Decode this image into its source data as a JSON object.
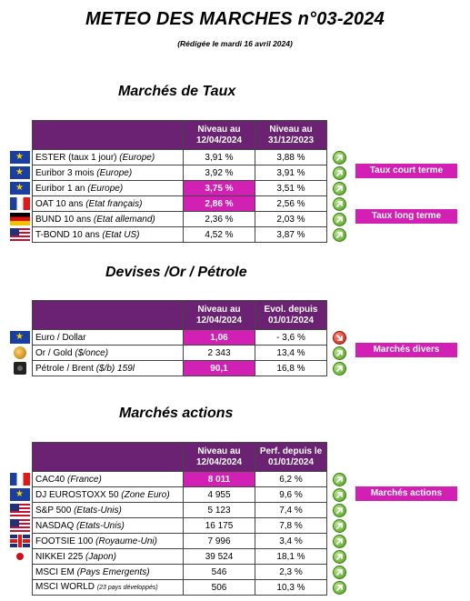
{
  "header": {
    "title": "METEO DES MARCHES n°03-2024",
    "subtitle": "(Rédigée le mardi 16 avril 2024)"
  },
  "taux": {
    "section_title": "Marchés de Taux",
    "col1": "Niveau au 12/04/2024",
    "col2": "Niveau au 31/12/2023",
    "rows": [
      {
        "flag": "eu-flag",
        "name": "ESTER (taux 1 jour) ",
        "region": "(Europe)",
        "v1": "3,91 %",
        "v2": "3,88 %",
        "trend": "up"
      },
      {
        "flag": "eu-flag",
        "name": "Euribor 3 mois ",
        "region": "(Europe)",
        "v1": "3,92 %",
        "v2": "3,91 %",
        "trend": "up"
      },
      {
        "flag": "eu-flag",
        "name": "Euribor 1 an ",
        "region": "(Europe)",
        "v1": "3,75 %",
        "v2": "3,51 %",
        "trend": "up",
        "highlight": true
      },
      {
        "flag": "france-flag",
        "name": "OAT 10 ans ",
        "region": "(Etat français)",
        "v1": "2,86 %",
        "v2": "2,56 %",
        "trend": "up",
        "highlight": true
      },
      {
        "flag": "germany-flag",
        "name": "BUND 10 ans ",
        "region": "(Etat allemand)",
        "v1": "2,36 %",
        "v2": "2,03 %",
        "trend": "up"
      },
      {
        "flag": "us-flag",
        "name": "T-BOND 10 ans ",
        "region": "(Etat US)",
        "v1": "4,52 %",
        "v2": "3,87 %",
        "trend": "up"
      }
    ],
    "tag_short": "Taux court terme",
    "tag_long": "Taux long terme"
  },
  "devises": {
    "section_title": "Devises /Or / Pétrole",
    "col1": "Niveau au 12/04/2024",
    "col2": "Evol. depuis 01/01/2024",
    "rows": [
      {
        "flag": "eu-flag",
        "name": "Euro / Dollar",
        "region": "",
        "v1": "1,06",
        "v2": "- 3,6 %",
        "trend": "down",
        "highlight": true
      },
      {
        "flag": "gold-icon",
        "name": "Or / Gold ",
        "region": "($/once)",
        "v1": "2 343",
        "v2": "13,4 %",
        "trend": "up"
      },
      {
        "flag": "oil-barrel-icon",
        "name": "Pétrole / Brent ",
        "region": "($/b) 159l",
        "v1": "90,1",
        "v2": "16,8 %",
        "trend": "up",
        "highlight": true
      }
    ],
    "tag": "Marchés divers"
  },
  "actions": {
    "section_title": "Marchés actions",
    "col1": "Niveau au 12/04/2024",
    "col2": "Perf. depuis le 01/01/2024",
    "rows": [
      {
        "flag": "france-flag",
        "name": "CAC40 ",
        "region": "(France)",
        "v1": "8 011",
        "v2": "6,2 %",
        "trend": "up",
        "highlight": true
      },
      {
        "flag": "eu-flag",
        "name": "DJ EUROSTOXX 50 ",
        "region": "(Zone Euro)",
        "v1": "4 955",
        "v2": "9,6 %",
        "trend": "up"
      },
      {
        "flag": "us-flag",
        "name": "S&P 500 ",
        "region": "(Etats-Unis)",
        "v1": "5 123",
        "v2": "7,4 %",
        "trend": "up"
      },
      {
        "flag": "us-flag",
        "name": "NASDAQ ",
        "region": "(Etats-Unis)",
        "v1": "16 175",
        "v2": "7,8 %",
        "trend": "up"
      },
      {
        "flag": "uk-flag",
        "name": "FOOTSIE 100 ",
        "region": "(Royaume-Uni)",
        "v1": "7 996",
        "v2": "3,4 %",
        "trend": "up"
      },
      {
        "flag": "japan-flag",
        "name": "NIKKEI 225 ",
        "region": "(Japon)",
        "v1": "39 524",
        "v2": "18,1 %",
        "trend": "up"
      },
      {
        "flag": "",
        "name": "MSCI EM ",
        "region": "(Pays Emergents)",
        "v1": "546",
        "v2": "2,3 %",
        "trend": "up"
      },
      {
        "flag": "",
        "name": "MSCI WORLD ",
        "region": "(23 pays développés)",
        "v1": "506",
        "v2": "10,3 %",
        "trend": "up",
        "small_region": true
      }
    ],
    "tag": "Marchés actions"
  }
}
